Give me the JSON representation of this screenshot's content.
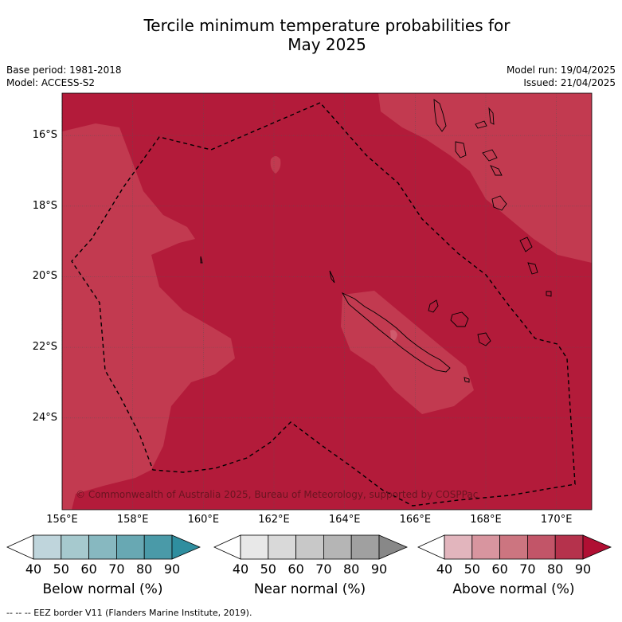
{
  "title_line1": "Tercile minimum temperature probabilities for",
  "title_line2": "May 2025",
  "meta": {
    "base_period": "Base period: 1981-2018",
    "model": "Model: ACCESS-S2",
    "model_run": "Model run: 19/04/2025",
    "issued": "Issued: 21/04/2025"
  },
  "map": {
    "lon_range": [
      156,
      171
    ],
    "lat_range": [
      -14.8,
      -26.6
    ],
    "lat_ticks": [
      "16°S",
      "18°S",
      "20°S",
      "22°S",
      "24°S"
    ],
    "lon_ticks": [
      "156°E",
      "158°E",
      "160°E",
      "162°E",
      "164°E",
      "166°E",
      "168°E",
      "170°E"
    ],
    "copyright": "© Commonwealth of Australia 2025, Bureau of Meteorology, supported by COSPPac",
    "colors": {
      "above_80_90": "#b31b3a",
      "above_70_80": "#c23a50",
      "coast": "#000000",
      "eez": "#000000"
    }
  },
  "colorbars": [
    {
      "label": "Below normal (%)",
      "ticks": [
        "40",
        "50",
        "60",
        "70",
        "80",
        "90"
      ],
      "colors": [
        "#ffffff",
        "#bfd5dc",
        "#a6c9ce",
        "#87b8c0",
        "#68a8b3",
        "#4a9aa8",
        "#2f8e9f"
      ]
    },
    {
      "label": "Near normal (%)",
      "ticks": [
        "40",
        "50",
        "60",
        "70",
        "80",
        "90"
      ],
      "colors": [
        "#ffffff",
        "#e8e8e8",
        "#d9d9d9",
        "#c8c8c8",
        "#b5b5b5",
        "#a0a0a0",
        "#888888"
      ]
    },
    {
      "label": "Above normal (%)",
      "ticks": [
        "40",
        "50",
        "60",
        "70",
        "80",
        "90"
      ],
      "colors": [
        "#ffffff",
        "#e2b5bd",
        "#d8959f",
        "#cc7580",
        "#c25568",
        "#b5324c",
        "#b00f33"
      ]
    }
  ],
  "footer": "--  --  -- EEZ border V11 (Flanders Marine Institute, 2019)."
}
